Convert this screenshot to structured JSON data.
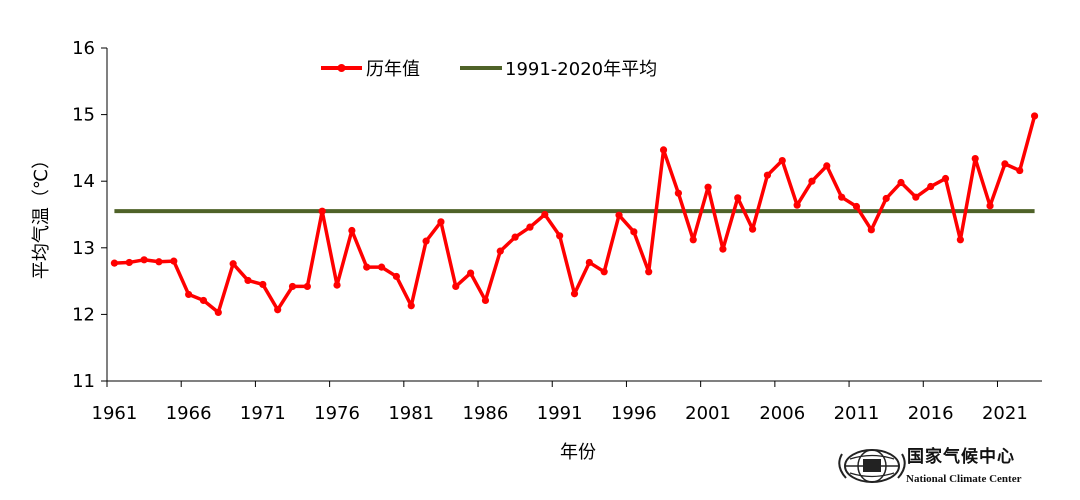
{
  "chart_data": {
    "type": "line",
    "xlabel": "年份",
    "ylabel": "平均气温（℃）",
    "ylim": [
      11,
      16
    ],
    "yticks": [
      "11",
      "12",
      "13",
      "14",
      "15",
      "16"
    ],
    "xticks": [
      "1961",
      "1966",
      "1971",
      "1976",
      "1981",
      "1986",
      "1991",
      "1996",
      "2001",
      "2006",
      "2011",
      "2016",
      "2021"
    ],
    "x_range": [
      1961,
      2023
    ],
    "legend_position": "top",
    "grid": false,
    "series": [
      {
        "name": "历年值",
        "color": "#ff0000",
        "marker": "circle",
        "x": [
          1961,
          1962,
          1963,
          1964,
          1965,
          1966,
          1967,
          1968,
          1969,
          1970,
          1971,
          1972,
          1973,
          1974,
          1975,
          1976,
          1977,
          1978,
          1979,
          1980,
          1981,
          1982,
          1983,
          1984,
          1985,
          1986,
          1987,
          1988,
          1989,
          1990,
          1991,
          1992,
          1993,
          1994,
          1995,
          1996,
          1997,
          1998,
          1999,
          2000,
          2001,
          2002,
          2003,
          2004,
          2005,
          2006,
          2007,
          2008,
          2009,
          2010,
          2011,
          2012,
          2013,
          2014,
          2015,
          2016,
          2017,
          2018,
          2019,
          2020,
          2021,
          2022,
          2023
        ],
        "values": [
          12.77,
          12.78,
          12.82,
          12.79,
          12.8,
          12.3,
          12.21,
          12.03,
          12.76,
          12.51,
          12.45,
          12.07,
          12.42,
          12.42,
          13.55,
          12.44,
          13.26,
          12.71,
          12.71,
          12.57,
          12.13,
          13.1,
          13.39,
          12.42,
          12.62,
          12.21,
          12.95,
          13.16,
          13.31,
          13.5,
          13.18,
          12.31,
          12.78,
          12.64,
          13.49,
          13.24,
          12.64,
          14.47,
          13.82,
          13.12,
          13.91,
          12.98,
          13.75,
          13.28,
          14.09,
          14.31,
          13.64,
          14.0,
          14.23,
          13.76,
          13.62,
          13.27,
          13.74,
          13.98,
          13.76,
          13.92,
          14.04,
          13.12,
          14.34,
          13.63,
          14.26,
          14.16,
          14.98
        ]
      },
      {
        "name": "1991-2020年平均",
        "color": "#4f6228",
        "values": [
          13.55
        ]
      }
    ]
  },
  "logo": {
    "cn": "国家气候中心",
    "en": "National Climate Center"
  }
}
